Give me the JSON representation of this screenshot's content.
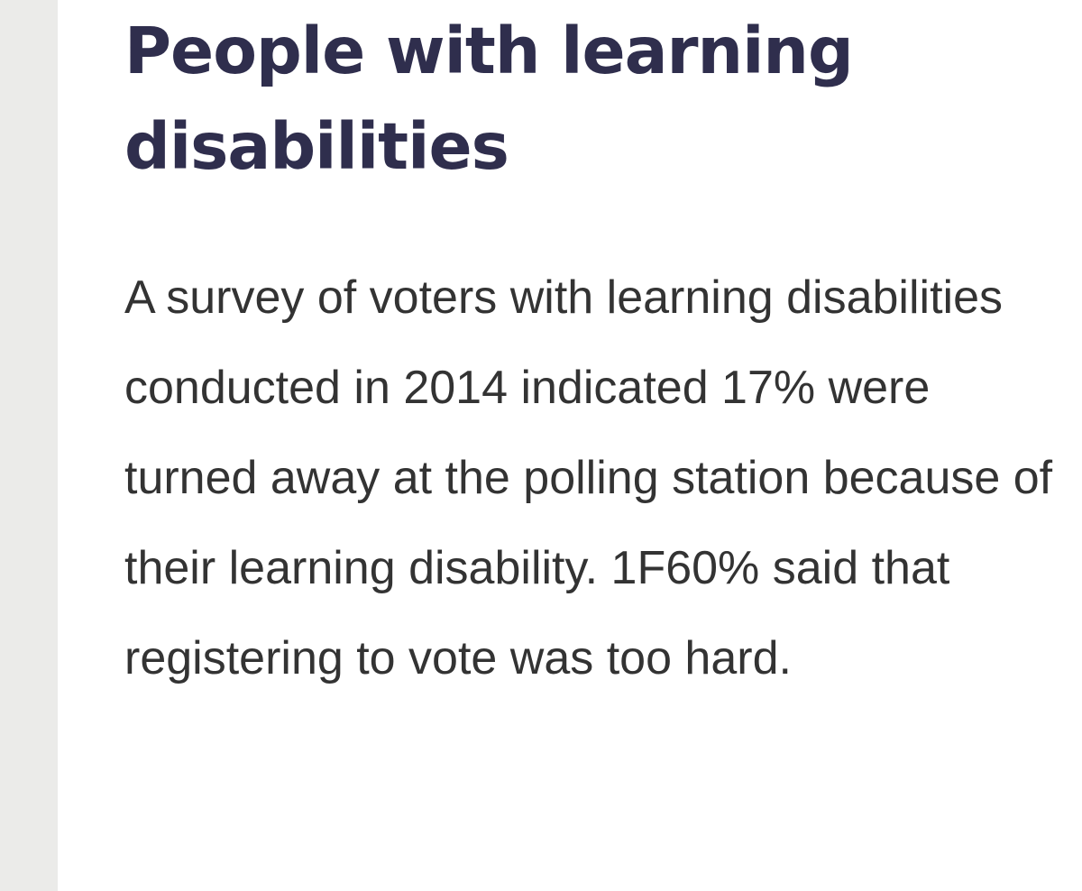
{
  "article": {
    "heading": "People with learning disabilities",
    "paragraph": "A survey of voters with learning disabilities conducted in 2014 indicated 17% were turned away at the polling station because of their learning disability. 1F60% said that registering to vote was too hard."
  },
  "colors": {
    "heading": "#2f2e4d",
    "body": "#333333",
    "rail": "#ebebe9",
    "background": "#ffffff"
  }
}
